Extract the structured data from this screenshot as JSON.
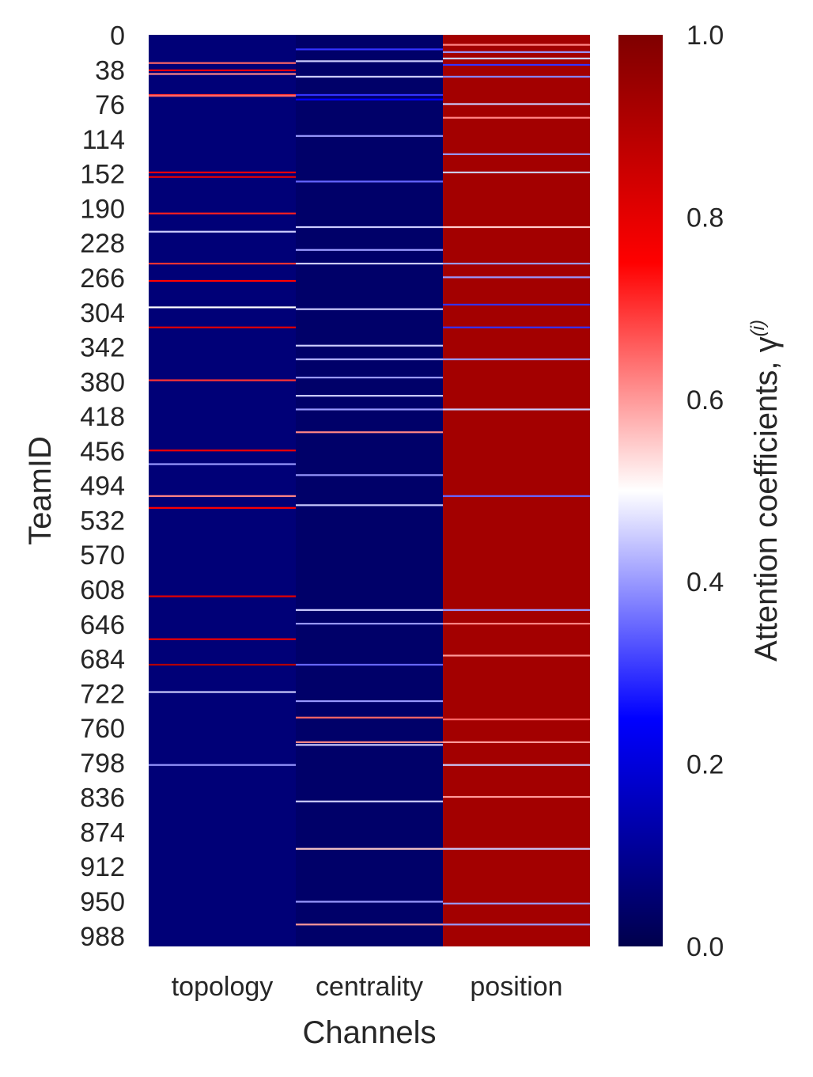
{
  "chart_data": {
    "type": "heatmap",
    "xlabel": "Channels",
    "ylabel": "TeamID",
    "columns": [
      "topology",
      "centrality",
      "position"
    ],
    "row_count": 1000,
    "y_tick_labels": [
      "0",
      "38",
      "76",
      "114",
      "152",
      "190",
      "228",
      "266",
      "304",
      "342",
      "380",
      "418",
      "456",
      "494",
      "532",
      "570",
      "608",
      "646",
      "684",
      "722",
      "760",
      "798",
      "836",
      "874",
      "912",
      "950",
      "988"
    ],
    "y_tick_values": [
      0,
      38,
      76,
      114,
      152,
      190,
      228,
      266,
      304,
      342,
      380,
      418,
      456,
      494,
      532,
      570,
      608,
      646,
      684,
      722,
      760,
      798,
      836,
      874,
      912,
      950,
      988
    ],
    "colorbar": {
      "label": "Attention coefficients, γ",
      "label_superscript": "(i)",
      "range": [
        0,
        1
      ],
      "ticks": [
        0.0,
        0.2,
        0.4,
        0.6,
        0.8,
        1.0
      ],
      "tick_labels": [
        "0.0",
        "0.2",
        "0.4",
        "0.6",
        "0.8",
        "1.0"
      ],
      "colormap": "seismic",
      "colormap_stops": [
        "#00004c",
        "#0000ff",
        "#ffffff",
        "#ff0000",
        "#7f0000"
      ]
    },
    "base_values": {
      "topology": 0.06,
      "centrality": 0.04,
      "position": 0.93
    },
    "highlight_rows": {
      "topology": [
        {
          "row": 30,
          "value": 0.65
        },
        {
          "row": 38,
          "value": 0.75
        },
        {
          "row": 42,
          "value": 0.62
        },
        {
          "row": 65,
          "value": 0.7
        },
        {
          "row": 66,
          "value": 0.65
        },
        {
          "row": 150,
          "value": 0.75
        },
        {
          "row": 155,
          "value": 0.78
        },
        {
          "row": 195,
          "value": 0.72
        },
        {
          "row": 215,
          "value": 0.45
        },
        {
          "row": 250,
          "value": 0.7
        },
        {
          "row": 269,
          "value": 0.75
        },
        {
          "row": 298,
          "value": 0.5
        },
        {
          "row": 320,
          "value": 0.8
        },
        {
          "row": 378,
          "value": 0.7
        },
        {
          "row": 455,
          "value": 0.78
        },
        {
          "row": 470,
          "value": 0.4
        },
        {
          "row": 505,
          "value": 0.62
        },
        {
          "row": 518,
          "value": 0.75
        },
        {
          "row": 615,
          "value": 0.8
        },
        {
          "row": 662,
          "value": 0.78
        },
        {
          "row": 690,
          "value": 0.9
        },
        {
          "row": 720,
          "value": 0.45
        },
        {
          "row": 800,
          "value": 0.4
        }
      ],
      "centrality": [
        {
          "row": 15,
          "value": 0.3
        },
        {
          "row": 28,
          "value": 0.45
        },
        {
          "row": 45,
          "value": 0.45
        },
        {
          "row": 65,
          "value": 0.3
        },
        {
          "row": 70,
          "value": 0.25
        },
        {
          "row": 110,
          "value": 0.4
        },
        {
          "row": 160,
          "value": 0.35
        },
        {
          "row": 210,
          "value": 0.45
        },
        {
          "row": 235,
          "value": 0.4
        },
        {
          "row": 250,
          "value": 0.45
        },
        {
          "row": 300,
          "value": 0.45
        },
        {
          "row": 340,
          "value": 0.45
        },
        {
          "row": 355,
          "value": 0.42
        },
        {
          "row": 375,
          "value": 0.4
        },
        {
          "row": 395,
          "value": 0.45
        },
        {
          "row": 410,
          "value": 0.4
        },
        {
          "row": 435,
          "value": 0.62
        },
        {
          "row": 482,
          "value": 0.4
        },
        {
          "row": 515,
          "value": 0.45
        },
        {
          "row": 630,
          "value": 0.45
        },
        {
          "row": 645,
          "value": 0.4
        },
        {
          "row": 690,
          "value": 0.35
        },
        {
          "row": 730,
          "value": 0.4
        },
        {
          "row": 748,
          "value": 0.65
        },
        {
          "row": 775,
          "value": 0.62
        },
        {
          "row": 778,
          "value": 0.45
        },
        {
          "row": 840,
          "value": 0.45
        },
        {
          "row": 892,
          "value": 0.55
        },
        {
          "row": 950,
          "value": 0.4
        },
        {
          "row": 975,
          "value": 0.6
        }
      ],
      "position": [
        {
          "row": 10,
          "value": 0.62
        },
        {
          "row": 18,
          "value": 0.4
        },
        {
          "row": 25,
          "value": 0.45
        },
        {
          "row": 32,
          "value": 0.3
        },
        {
          "row": 45,
          "value": 0.38
        },
        {
          "row": 75,
          "value": 0.45
        },
        {
          "row": 90,
          "value": 0.62
        },
        {
          "row": 130,
          "value": 0.4
        },
        {
          "row": 150,
          "value": 0.45
        },
        {
          "row": 210,
          "value": 0.55
        },
        {
          "row": 250,
          "value": 0.4
        },
        {
          "row": 265,
          "value": 0.4
        },
        {
          "row": 295,
          "value": 0.3
        },
        {
          "row": 320,
          "value": 0.3
        },
        {
          "row": 355,
          "value": 0.4
        },
        {
          "row": 410,
          "value": 0.45
        },
        {
          "row": 505,
          "value": 0.35
        },
        {
          "row": 630,
          "value": 0.4
        },
        {
          "row": 645,
          "value": 0.62
        },
        {
          "row": 680,
          "value": 0.6
        },
        {
          "row": 750,
          "value": 0.65
        },
        {
          "row": 775,
          "value": 0.6
        },
        {
          "row": 800,
          "value": 0.45
        },
        {
          "row": 835,
          "value": 0.6
        },
        {
          "row": 892,
          "value": 0.45
        },
        {
          "row": 952,
          "value": 0.4
        },
        {
          "row": 975,
          "value": 0.4
        }
      ]
    }
  }
}
